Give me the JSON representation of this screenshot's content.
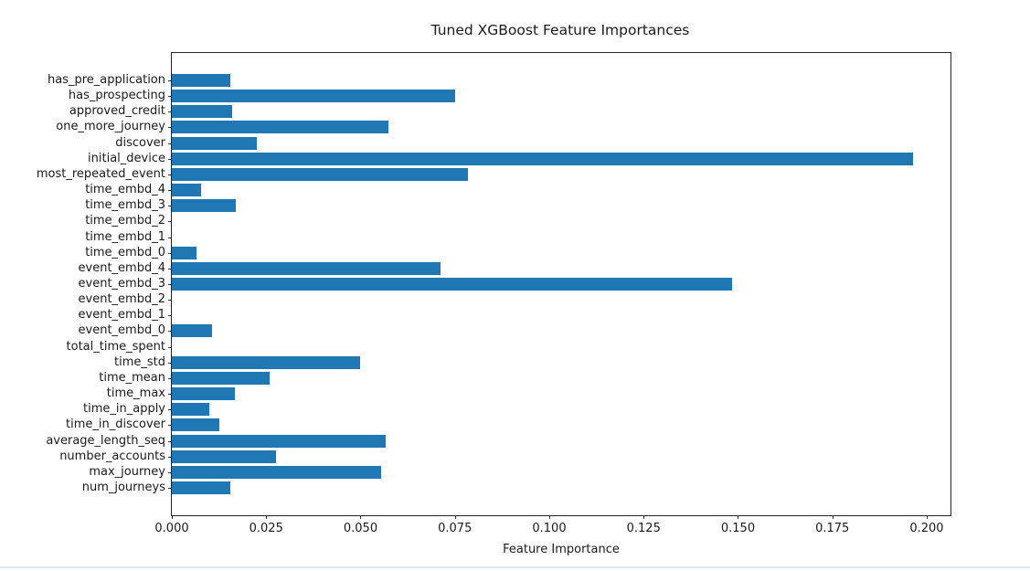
{
  "page": {
    "background": "#ffffff",
    "bottom_line_color": "#dbe7f3"
  },
  "chart_data": {
    "type": "bar",
    "orientation": "horizontal",
    "title": "Tuned XGBoost Feature Importances",
    "xlabel": "Feature Importance",
    "ylabel": "",
    "grid": false,
    "legend": null,
    "bar_color": "#1f77b4",
    "categories": [
      "has_pre_application",
      "has_prospecting",
      "approved_credit",
      "one_more_journey",
      "discover",
      "initial_device",
      "most_repeated_event",
      "time_embd_4",
      "time_embd_3",
      "time_embd_2",
      "time_embd_1",
      "time_embd_0",
      "event_embd_4",
      "event_embd_3",
      "event_embd_2",
      "event_embd_1",
      "event_embd_0",
      "total_time_spent",
      "time_std",
      "time_mean",
      "time_max",
      "time_in_apply",
      "time_in_discover",
      "average_length_seq",
      "number_accounts",
      "max_journey",
      "num_journeys"
    ],
    "values": [
      0.0155,
      0.075,
      0.016,
      0.0574,
      0.0225,
      0.1963,
      0.0784,
      0.0077,
      0.0169,
      0.0,
      0.0,
      0.0065,
      0.0712,
      0.1484,
      0.0,
      0.0,
      0.0107,
      0.0,
      0.0499,
      0.0259,
      0.0167,
      0.0099,
      0.0126,
      0.0567,
      0.0276,
      0.0554,
      0.0155
    ],
    "xlim": [
      0,
      0.2063
    ],
    "xtick_values": [
      0.0,
      0.025,
      0.05,
      0.075,
      0.1,
      0.125,
      0.15,
      0.175,
      0.2
    ],
    "xtick_labels": [
      "0.000",
      "0.025",
      "0.050",
      "0.075",
      "0.100",
      "0.125",
      "0.150",
      "0.175",
      "0.200"
    ]
  }
}
